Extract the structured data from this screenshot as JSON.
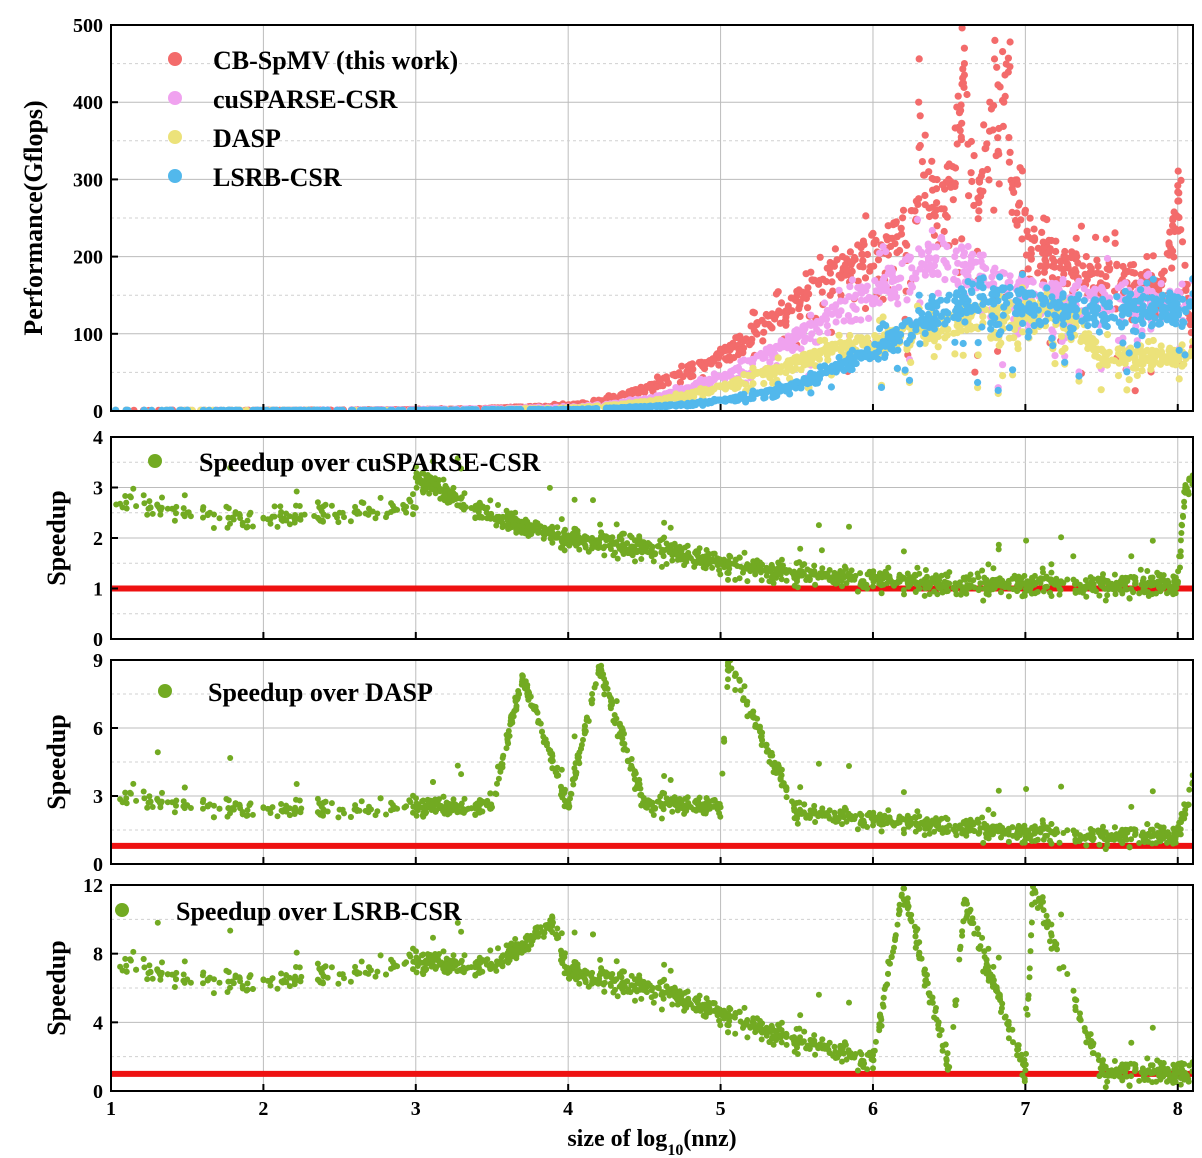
{
  "chart_data": [
    {
      "type": "scatter",
      "id": "performance",
      "ylabel": "Performance(Gflops)",
      "xlabel": "",
      "xlim": [
        1,
        8.1
      ],
      "ylim": [
        0,
        500
      ],
      "xticks": [
        1,
        2,
        3,
        4,
        5,
        6,
        7,
        8
      ],
      "yticks": [
        0,
        100,
        200,
        300,
        400,
        500
      ],
      "grid": true,
      "legend": "top-left",
      "series": [
        {
          "name": "CB-SpMV (this work)",
          "color": "#f36b6b",
          "points": [
            [
              1.1,
              1
            ],
            [
              2.0,
              1
            ],
            [
              3.0,
              2
            ],
            [
              3.5,
              4
            ],
            [
              4.0,
              8
            ],
            [
              4.2,
              14
            ],
            [
              4.4,
              25
            ],
            [
              4.6,
              40
            ],
            [
              4.8,
              60
            ],
            [
              5.0,
              80
            ],
            [
              5.1,
              95
            ],
            [
              5.2,
              110
            ],
            [
              5.3,
              125
            ],
            [
              5.4,
              140
            ],
            [
              5.5,
              155
            ],
            [
              5.6,
              170
            ],
            [
              5.7,
              185
            ],
            [
              5.8,
              200
            ],
            [
              5.9,
              215
            ],
            [
              6.0,
              230
            ],
            [
              6.1,
              240
            ],
            [
              6.2,
              260
            ],
            [
              6.3,
              275
            ],
            [
              6.3,
              400
            ],
            [
              6.4,
              300
            ],
            [
              6.5,
              320
            ],
            [
              6.6,
              470
            ],
            [
              6.6,
              450
            ],
            [
              6.7,
              300
            ],
            [
              6.8,
              480
            ],
            [
              6.9,
              478
            ],
            [
              6.9,
              335
            ],
            [
              7.0,
              260
            ],
            [
              7.2,
              220
            ],
            [
              7.4,
              200
            ],
            [
              7.6,
              190
            ],
            [
              7.8,
              180
            ],
            [
              7.9,
              170
            ],
            [
              8.0,
              292
            ],
            [
              8.1,
              90
            ]
          ]
        },
        {
          "name": "cuSPARSE-CSR",
          "color": "#f0a2ef",
          "points": [
            [
              1.1,
              1
            ],
            [
              2.0,
              1
            ],
            [
              3.0,
              2
            ],
            [
              3.5,
              3
            ],
            [
              4.0,
              5
            ],
            [
              4.3,
              10
            ],
            [
              4.6,
              20
            ],
            [
              4.9,
              40
            ],
            [
              5.1,
              55
            ],
            [
              5.3,
              80
            ],
            [
              5.5,
              105
            ],
            [
              5.7,
              130
            ],
            [
              5.9,
              160
            ],
            [
              6.1,
              185
            ],
            [
              6.3,
              210
            ],
            [
              6.45,
              225
            ],
            [
              6.6,
              205
            ],
            [
              6.8,
              185
            ],
            [
              7.0,
              170
            ],
            [
              7.2,
              165
            ],
            [
              7.5,
              160
            ],
            [
              7.8,
              158
            ],
            [
              8.0,
              155
            ],
            [
              8.1,
              150
            ]
          ]
        },
        {
          "name": "DASP",
          "color": "#ece27a",
          "points": [
            [
              1.1,
              1
            ],
            [
              2.0,
              1
            ],
            [
              3.0,
              1
            ],
            [
              3.5,
              2
            ],
            [
              4.0,
              4
            ],
            [
              4.3,
              8
            ],
            [
              4.6,
              15
            ],
            [
              4.9,
              28
            ],
            [
              5.1,
              40
            ],
            [
              5.3,
              55
            ],
            [
              5.5,
              70
            ],
            [
              5.7,
              85
            ],
            [
              5.9,
              95
            ],
            [
              6.1,
              105
            ],
            [
              6.3,
              115
            ],
            [
              6.5,
              125
            ],
            [
              6.7,
              135
            ],
            [
              6.9,
              140
            ],
            [
              7.1,
              142
            ],
            [
              7.3,
              140
            ],
            [
              7.5,
              80
            ]
          ]
        },
        {
          "name": "LSRB-CSR",
          "color": "#52b8ec",
          "points": [
            [
              1.1,
              1
            ],
            [
              1.5,
              1
            ],
            [
              2.0,
              1
            ],
            [
              3.0,
              1
            ],
            [
              3.5,
              2
            ],
            [
              4.0,
              2
            ],
            [
              4.3,
              4
            ],
            [
              4.6,
              7
            ],
            [
              4.9,
              12
            ],
            [
              5.1,
              18
            ],
            [
              5.3,
              26
            ],
            [
              5.5,
              38
            ],
            [
              5.7,
              55
            ],
            [
              5.9,
              75
            ],
            [
              6.1,
              100
            ],
            [
              6.3,
              130
            ],
            [
              6.5,
              150
            ],
            [
              6.7,
              165
            ],
            [
              6.9,
              160
            ],
            [
              7.1,
              150
            ],
            [
              7.3,
              145
            ],
            [
              7.6,
              148
            ],
            [
              7.9,
              150
            ],
            [
              8.1,
              152
            ]
          ]
        }
      ]
    },
    {
      "type": "scatter",
      "id": "speedup-cusparse",
      "ylabel": "Speedup",
      "xlabel": "",
      "xlim": [
        1,
        8.1
      ],
      "ylim": [
        0,
        4
      ],
      "xticks": [
        1,
        2,
        3,
        4,
        5,
        6,
        7,
        8
      ],
      "yticks": [
        0,
        1,
        2,
        3,
        4
      ],
      "grid": true,
      "legend": "top-left",
      "reference_line": 1,
      "series": [
        {
          "name": "Speedup over cuSPARSE-CSR",
          "color": "#72aa22",
          "points": [
            [
              1.1,
              2.7
            ],
            [
              1.5,
              2.5
            ],
            [
              2.0,
              2.4
            ],
            [
              2.5,
              2.5
            ],
            [
              3.0,
              2.6
            ],
            [
              3.0,
              3.2
            ],
            [
              3.5,
              2.4
            ],
            [
              4.0,
              2.0
            ],
            [
              4.5,
              1.8
            ],
            [
              5.0,
              1.5
            ],
            [
              5.5,
              1.3
            ],
            [
              6.0,
              1.2
            ],
            [
              6.5,
              1.1
            ],
            [
              7.0,
              1.1
            ],
            [
              7.5,
              1.05
            ],
            [
              8.0,
              1.1
            ],
            [
              8.05,
              3.05
            ]
          ]
        }
      ]
    },
    {
      "type": "scatter",
      "id": "speedup-dasp",
      "ylabel": "Speedup",
      "xlabel": "",
      "xlim": [
        1,
        8.1
      ],
      "ylim": [
        0,
        9
      ],
      "xticks": [
        1,
        2,
        3,
        4,
        5,
        6,
        7,
        8
      ],
      "yticks": [
        0,
        3,
        6,
        9
      ],
      "grid": true,
      "legend": "top-left",
      "reference_line": 0.8,
      "series": [
        {
          "name": "Speedup over DASP",
          "color": "#72aa22",
          "points": [
            [
              1.1,
              2.9
            ],
            [
              1.5,
              2.6
            ],
            [
              2.0,
              2.5
            ],
            [
              2.5,
              2.4
            ],
            [
              3.0,
              2.5
            ],
            [
              3.5,
              2.5
            ],
            [
              3.7,
              8.3
            ],
            [
              4.0,
              2.6
            ],
            [
              4.2,
              8.7
            ],
            [
              4.5,
              2.6
            ],
            [
              5.0,
              2.5
            ],
            [
              5.05,
              8.9
            ],
            [
              5.5,
              2.3
            ],
            [
              6.0,
              2.0
            ],
            [
              6.5,
              1.7
            ],
            [
              7.0,
              1.4
            ],
            [
              7.5,
              1.2
            ],
            [
              8.0,
              1.3
            ],
            [
              8.1,
              3.6
            ]
          ]
        }
      ]
    },
    {
      "type": "scatter",
      "id": "speedup-lsrb",
      "ylabel": "Speedup",
      "xlabel": "size of log10(nnz)",
      "xlim": [
        1,
        8.1
      ],
      "ylim": [
        0,
        12
      ],
      "xticks": [
        1,
        2,
        3,
        4,
        5,
        6,
        7,
        8
      ],
      "yticks": [
        0,
        4,
        8,
        12
      ],
      "grid": true,
      "legend": "top-left",
      "reference_line": 1,
      "series": [
        {
          "name": "Speedup over LSRB-CSR",
          "color": "#72aa22",
          "points": [
            [
              1.1,
              7.3
            ],
            [
              1.5,
              6.5
            ],
            [
              2.0,
              6.5
            ],
            [
              2.5,
              6.8
            ],
            [
              3.0,
              7.5
            ],
            [
              3.5,
              7.2
            ],
            [
              3.9,
              9.8
            ],
            [
              4.0,
              7.0
            ],
            [
              4.5,
              6.0
            ],
            [
              5.0,
              4.5
            ],
            [
              5.5,
              3.0
            ],
            [
              6.0,
              1.8
            ],
            [
              6.2,
              11.8
            ],
            [
              6.5,
              1.4
            ],
            [
              6.6,
              11.0
            ],
            [
              7.0,
              1.2
            ],
            [
              7.05,
              11.9
            ],
            [
              7.5,
              1.1
            ],
            [
              8.0,
              1.1
            ]
          ]
        }
      ]
    }
  ]
}
